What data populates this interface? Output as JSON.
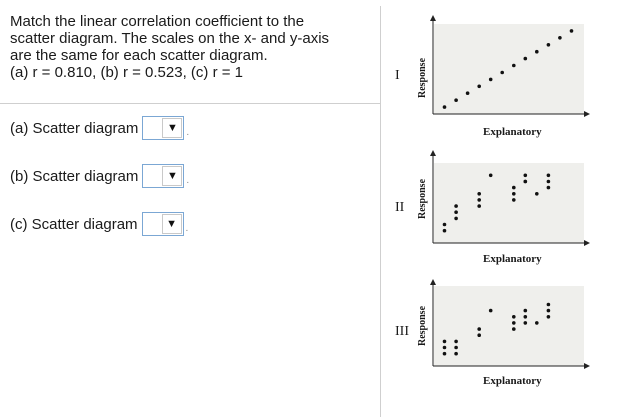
{
  "question": {
    "lines": [
      "Match the linear correlation coefficient to the",
      "scatter diagram. The scales on the x- and y-axis",
      "are the same for each scatter diagram.",
      "(a) r = 0.810, (b) r = 0.523, (c) r = 1"
    ]
  },
  "rows": [
    {
      "label": "(a) Scatter diagram",
      "value": "",
      "arrow": "▼",
      "tick": "."
    },
    {
      "label": "(b) Scatter diagram",
      "value": "",
      "arrow": "▼",
      "tick": "."
    },
    {
      "label": "(c) Scatter diagram",
      "value": "",
      "arrow": "▼",
      "tick": "."
    }
  ],
  "diagrams": [
    {
      "roman": "I",
      "ylabel": "Response",
      "xlabel": "Explanatory"
    },
    {
      "roman": "II",
      "ylabel": "Response",
      "xlabel": "Explanatory"
    },
    {
      "roman": "III",
      "ylabel": "Response",
      "xlabel": "Explanatory"
    }
  ],
  "chart_data": [
    {
      "type": "scatter",
      "title": "",
      "xlabel": "Explanatory",
      "ylabel": "Response",
      "x": [
        1,
        2,
        3,
        4,
        5,
        6,
        7,
        8,
        9,
        10,
        11,
        12
      ],
      "y": [
        1,
        2,
        3,
        4,
        5,
        6,
        7,
        8,
        9,
        10,
        11,
        12
      ]
    },
    {
      "type": "scatter",
      "title": "",
      "xlabel": "Explanatory",
      "ylabel": "Response",
      "x": [
        1,
        1,
        2,
        2,
        2,
        4,
        4,
        4,
        5,
        7,
        7,
        7,
        8,
        8,
        8,
        9,
        10,
        10,
        10
      ],
      "y": [
        2,
        3,
        4,
        5,
        6,
        6,
        7,
        8,
        11,
        7,
        8,
        9,
        10,
        11,
        10,
        8,
        9,
        10,
        11
      ]
    },
    {
      "type": "scatter",
      "title": "",
      "xlabel": "Explanatory",
      "ylabel": "Response",
      "x": [
        1,
        1,
        1,
        2,
        2,
        2,
        4,
        4,
        5,
        7,
        7,
        7,
        8,
        8,
        8,
        9,
        10,
        10,
        10
      ],
      "y": [
        2,
        3,
        4,
        2,
        3,
        4,
        5,
        6,
        9,
        6,
        7,
        8,
        7,
        8,
        9,
        7,
        8,
        9,
        10
      ]
    }
  ]
}
